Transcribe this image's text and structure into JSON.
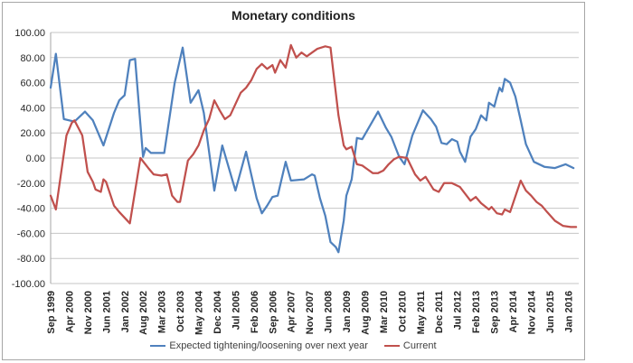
{
  "chart_data": {
    "type": "line",
    "title": "Monetary conditions",
    "grid": true,
    "legend_position": "bottom",
    "x_axis": {
      "unit": "months since Sep 1999",
      "range_months": [
        0,
        200
      ],
      "tick_interval_months": 7,
      "tick_labels": [
        "Sep 1999",
        "Apr 2000",
        "Nov 2000",
        "Jun 2001",
        "Jan 2002",
        "Aug 2002",
        "Mar 2003",
        "Oct 2003",
        "May 2004",
        "Dec 2004",
        "Jul 2005",
        "Feb 2006",
        "Sep 2006",
        "Apr 2007",
        "Nov 2007",
        "Jun 2008",
        "Jan 2009",
        "Aug 2009",
        "Mar 2010",
        "Oct 2010",
        "May 2011",
        "Dec 2011",
        "Jul 2012",
        "Feb 2013",
        "Sep 2013",
        "Apr 2014",
        "Nov 2014",
        "Jun 2015",
        "Jan 2016"
      ]
    },
    "y_axis": {
      "ylim": [
        -100,
        100
      ],
      "tick_step": 20,
      "tick_labels": [
        "100.00",
        "80.00",
        "60.00",
        "40.00",
        "20.00",
        "0.00",
        "-20.00",
        "-40.00",
        "-60.00",
        "-80.00",
        "-100.00"
      ]
    },
    "series": [
      {
        "name": "Expected tightening/loosening over next year",
        "color": "#4F81BD",
        "points": [
          [
            0,
            56
          ],
          [
            2,
            83
          ],
          [
            5,
            31
          ],
          [
            9,
            29
          ],
          [
            13,
            37
          ],
          [
            16,
            30
          ],
          [
            20,
            10
          ],
          [
            24,
            36
          ],
          [
            26,
            46
          ],
          [
            28,
            50
          ],
          [
            30,
            78
          ],
          [
            32,
            79
          ],
          [
            35,
            1
          ],
          [
            36,
            8
          ],
          [
            38,
            4
          ],
          [
            43,
            4
          ],
          [
            47,
            60
          ],
          [
            50,
            88
          ],
          [
            53,
            44
          ],
          [
            56,
            54
          ],
          [
            58,
            36
          ],
          [
            62,
            -26
          ],
          [
            65,
            10
          ],
          [
            70,
            -26
          ],
          [
            74,
            5
          ],
          [
            78,
            -32
          ],
          [
            80,
            -44
          ],
          [
            82,
            -38
          ],
          [
            84,
            -31
          ],
          [
            86,
            -30
          ],
          [
            89,
            -3
          ],
          [
            91,
            -18
          ],
          [
            96,
            -17
          ],
          [
            99,
            -13
          ],
          [
            100,
            -14
          ],
          [
            102,
            -32
          ],
          [
            104,
            -46
          ],
          [
            106,
            -67
          ],
          [
            108,
            -71
          ],
          [
            109,
            -75
          ],
          [
            111,
            -50
          ],
          [
            112,
            -30
          ],
          [
            114,
            -17
          ],
          [
            116,
            16
          ],
          [
            118,
            15
          ],
          [
            124,
            37
          ],
          [
            127,
            24
          ],
          [
            129,
            17
          ],
          [
            132,
            1
          ],
          [
            134,
            -5
          ],
          [
            137,
            18
          ],
          [
            141,
            38
          ],
          [
            144,
            31
          ],
          [
            146,
            25
          ],
          [
            148,
            12
          ],
          [
            150,
            11
          ],
          [
            152,
            15
          ],
          [
            154,
            13
          ],
          [
            155,
            5
          ],
          [
            157,
            -3
          ],
          [
            159,
            17
          ],
          [
            161,
            23
          ],
          [
            163,
            34
          ],
          [
            165,
            30
          ],
          [
            166,
            44
          ],
          [
            168,
            41
          ],
          [
            169,
            49
          ],
          [
            170,
            56
          ],
          [
            171,
            53
          ],
          [
            172,
            63
          ],
          [
            174,
            60
          ],
          [
            176,
            49
          ],
          [
            178,
            30
          ],
          [
            180,
            11
          ],
          [
            183,
            -3
          ],
          [
            187,
            -7
          ],
          [
            191,
            -8
          ],
          [
            195,
            -5
          ],
          [
            198,
            -8
          ]
        ]
      },
      {
        "name": "Current",
        "color": "#C0504D",
        "points": [
          [
            0,
            -30
          ],
          [
            2,
            -41
          ],
          [
            6,
            18
          ],
          [
            8,
            28
          ],
          [
            9,
            30
          ],
          [
            11,
            22
          ],
          [
            12,
            18
          ],
          [
            14,
            -11
          ],
          [
            16,
            -19
          ],
          [
            17,
            -25
          ],
          [
            19,
            -27
          ],
          [
            20,
            -17
          ],
          [
            21,
            -19
          ],
          [
            24,
            -38
          ],
          [
            26,
            -43
          ],
          [
            30,
            -52
          ],
          [
            34,
            0
          ],
          [
            37,
            -8
          ],
          [
            39,
            -13
          ],
          [
            42,
            -14
          ],
          [
            44,
            -13
          ],
          [
            46,
            -30
          ],
          [
            48,
            -35
          ],
          [
            49,
            -35
          ],
          [
            52,
            -2
          ],
          [
            54,
            3
          ],
          [
            56,
            10
          ],
          [
            58,
            22
          ],
          [
            60,
            31
          ],
          [
            62,
            46
          ],
          [
            64,
            38
          ],
          [
            66,
            31
          ],
          [
            68,
            34
          ],
          [
            70,
            43
          ],
          [
            72,
            52
          ],
          [
            74,
            56
          ],
          [
            76,
            62
          ],
          [
            78,
            71
          ],
          [
            80,
            75
          ],
          [
            82,
            71
          ],
          [
            84,
            74
          ],
          [
            85,
            68
          ],
          [
            87,
            78
          ],
          [
            89,
            72
          ],
          [
            91,
            90
          ],
          [
            93,
            80
          ],
          [
            95,
            84
          ],
          [
            97,
            81
          ],
          [
            99,
            84
          ],
          [
            101,
            87
          ],
          [
            104,
            89
          ],
          [
            106,
            88
          ],
          [
            107,
            70
          ],
          [
            109,
            34
          ],
          [
            111,
            10
          ],
          [
            112,
            7
          ],
          [
            114,
            9
          ],
          [
            116,
            -5
          ],
          [
            118,
            -6
          ],
          [
            120,
            -9
          ],
          [
            122,
            -12
          ],
          [
            124,
            -12
          ],
          [
            126,
            -10
          ],
          [
            128,
            -5
          ],
          [
            130,
            -1
          ],
          [
            132,
            1
          ],
          [
            135,
            0
          ],
          [
            138,
            -13
          ],
          [
            140,
            -18
          ],
          [
            142,
            -15
          ],
          [
            145,
            -25
          ],
          [
            147,
            -27
          ],
          [
            149,
            -20
          ],
          [
            152,
            -20
          ],
          [
            155,
            -23
          ],
          [
            159,
            -34
          ],
          [
            161,
            -31
          ],
          [
            163,
            -36
          ],
          [
            166,
            -41
          ],
          [
            167,
            -39
          ],
          [
            169,
            -44
          ],
          [
            171,
            -45
          ],
          [
            172,
            -41
          ],
          [
            174,
            -43
          ],
          [
            178,
            -18
          ],
          [
            180,
            -26
          ],
          [
            182,
            -30
          ],
          [
            184,
            -35
          ],
          [
            186,
            -38
          ],
          [
            188,
            -43
          ],
          [
            191,
            -50
          ],
          [
            194,
            -54
          ],
          [
            197,
            -55
          ],
          [
            199,
            -55
          ]
        ]
      }
    ],
    "colors": {
      "grid": "#C6C6C6",
      "axis": "#A6A6A6",
      "frame_border": "#A6A6A6",
      "title_text": "#1F1F1F",
      "tick_text": "#262626",
      "legend_text": "#3F3F3F"
    }
  }
}
